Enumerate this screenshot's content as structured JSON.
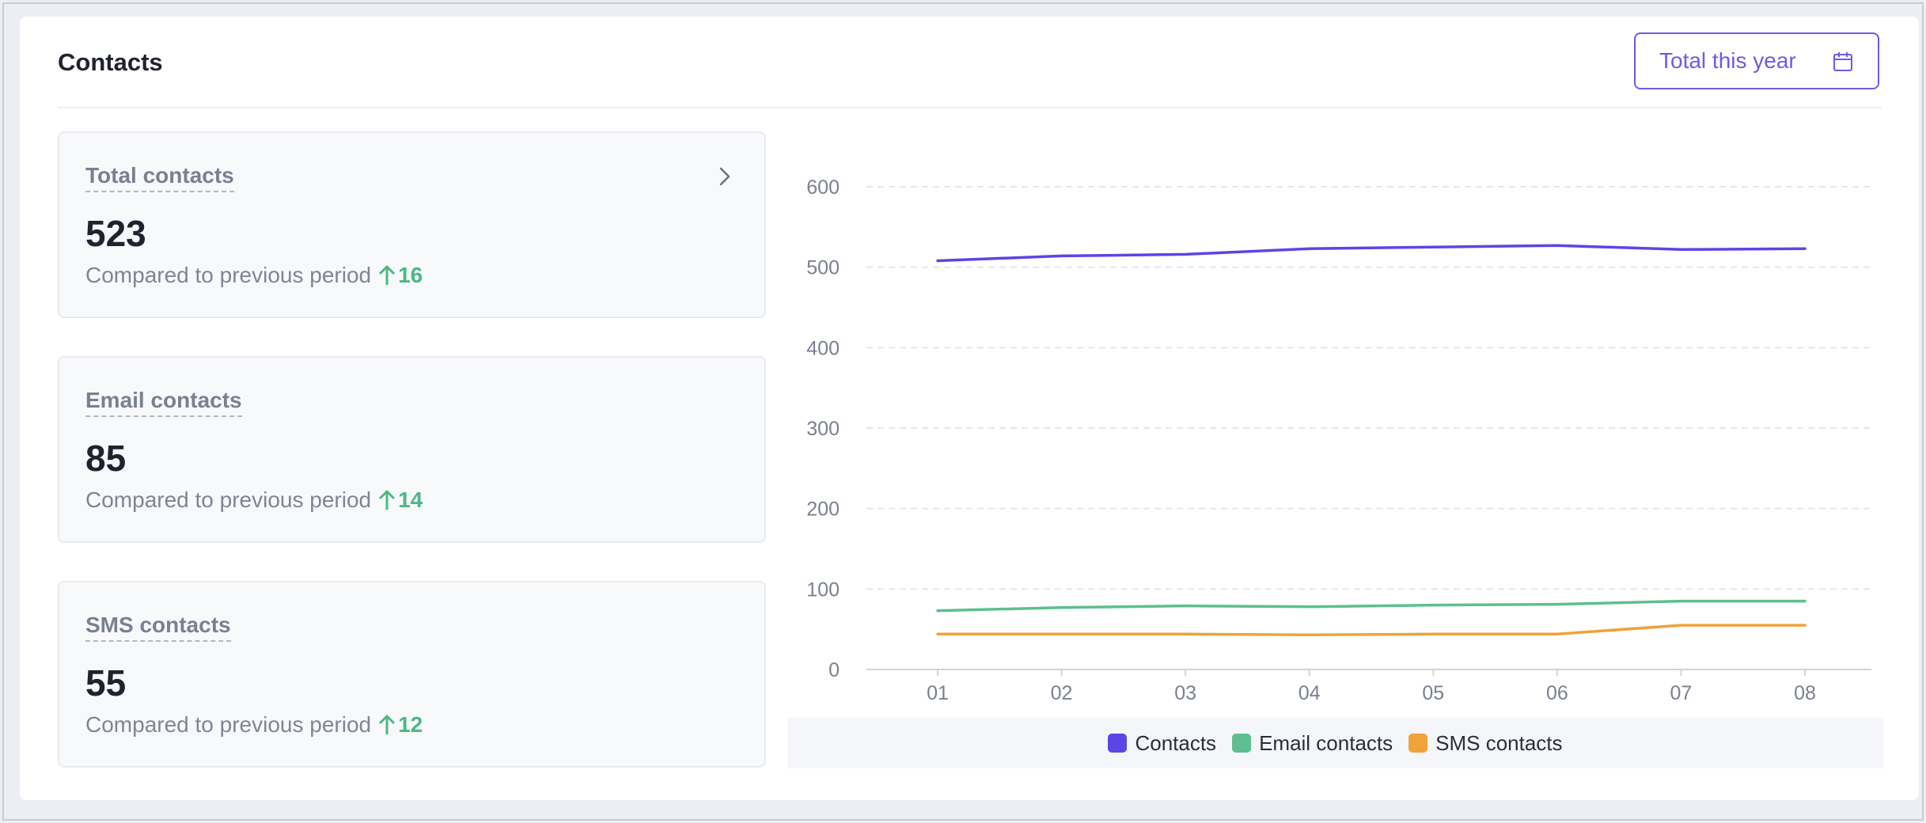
{
  "header": {
    "title": "Contacts",
    "date_button_label": "Total this year",
    "date_button_icon": "calendar-icon"
  },
  "stats": [
    {
      "label": "Total contacts",
      "value": "523",
      "compare_text": "Compared to previous period",
      "delta": "16",
      "has_link": true
    },
    {
      "label": "Email contacts",
      "value": "85",
      "compare_text": "Compared to previous period",
      "delta": "14",
      "has_link": false
    },
    {
      "label": "SMS contacts",
      "value": "55",
      "compare_text": "Compared to previous period",
      "delta": "12",
      "has_link": false
    }
  ],
  "colors": {
    "accent": "#6b5ce6",
    "contacts": "#5b46e5",
    "email": "#5dbf8f",
    "sms": "#f0a23b",
    "delta_up": "#4cb884"
  },
  "chart_data": {
    "type": "line",
    "x": [
      "01",
      "02",
      "03",
      "04",
      "05",
      "06",
      "07",
      "08"
    ],
    "ylim": [
      0,
      600
    ],
    "yticks": [
      0,
      100,
      200,
      300,
      400,
      500,
      600
    ],
    "grid": true,
    "legend_position": "bottom",
    "series": [
      {
        "name": "Contacts",
        "color": "#5b46e5",
        "values": [
          508,
          514,
          516,
          523,
          525,
          527,
          522,
          523
        ]
      },
      {
        "name": "Email contacts",
        "color": "#5dbf8f",
        "values": [
          73,
          77,
          79,
          78,
          80,
          81,
          85,
          85
        ]
      },
      {
        "name": "SMS contacts",
        "color": "#f0a23b",
        "values": [
          44,
          44,
          44,
          43,
          44,
          44,
          55,
          55
        ]
      }
    ]
  }
}
